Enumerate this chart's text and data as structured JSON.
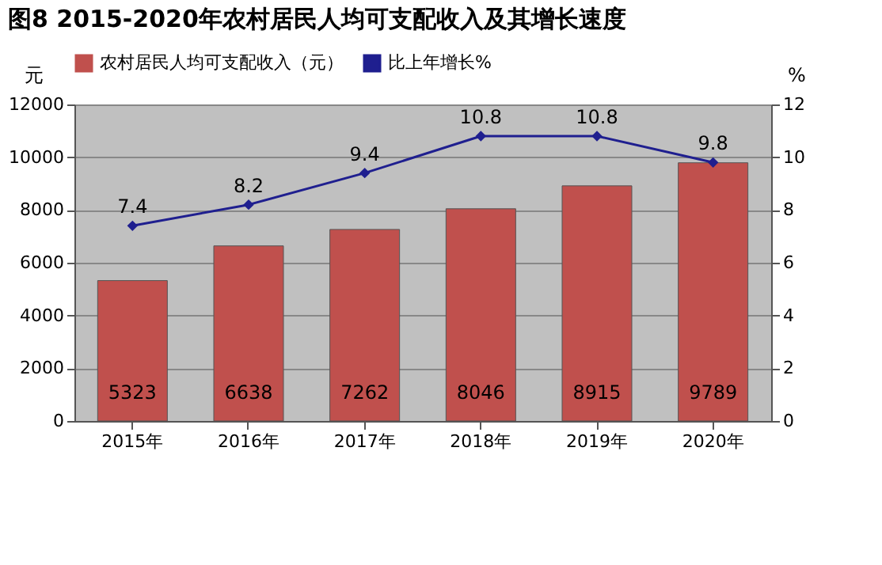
{
  "chart_data": {
    "type": "bar",
    "title": "图8  2015-2020年农村居民人均可支配收入及其增长速度",
    "categories": [
      "2015年",
      "2016年",
      "2017年",
      "2018年",
      "2019年",
      "2020年"
    ],
    "ylabel": "元",
    "y2label": "%",
    "series": [
      {
        "name": "农村居民人均可支配收入（元）",
        "type": "bar",
        "color": "#c0504d",
        "values": [
          5323,
          6638,
          7262,
          8046,
          8915,
          9789
        ]
      },
      {
        "name": "比上年增长%",
        "type": "line",
        "axis": "y2",
        "color": "#1f1f8f",
        "values": [
          7.4,
          8.2,
          9.4,
          10.8,
          10.8,
          9.8
        ]
      }
    ],
    "ylim": [
      0,
      12000
    ],
    "yticks": [
      0,
      2000,
      4000,
      6000,
      8000,
      10000,
      12000
    ],
    "y2lim": [
      0,
      12
    ],
    "y2ticks": [
      0,
      2,
      4,
      6,
      8,
      10,
      12
    ],
    "grid": "y",
    "legend": "top",
    "marker": "diamond",
    "data_labels": true
  }
}
